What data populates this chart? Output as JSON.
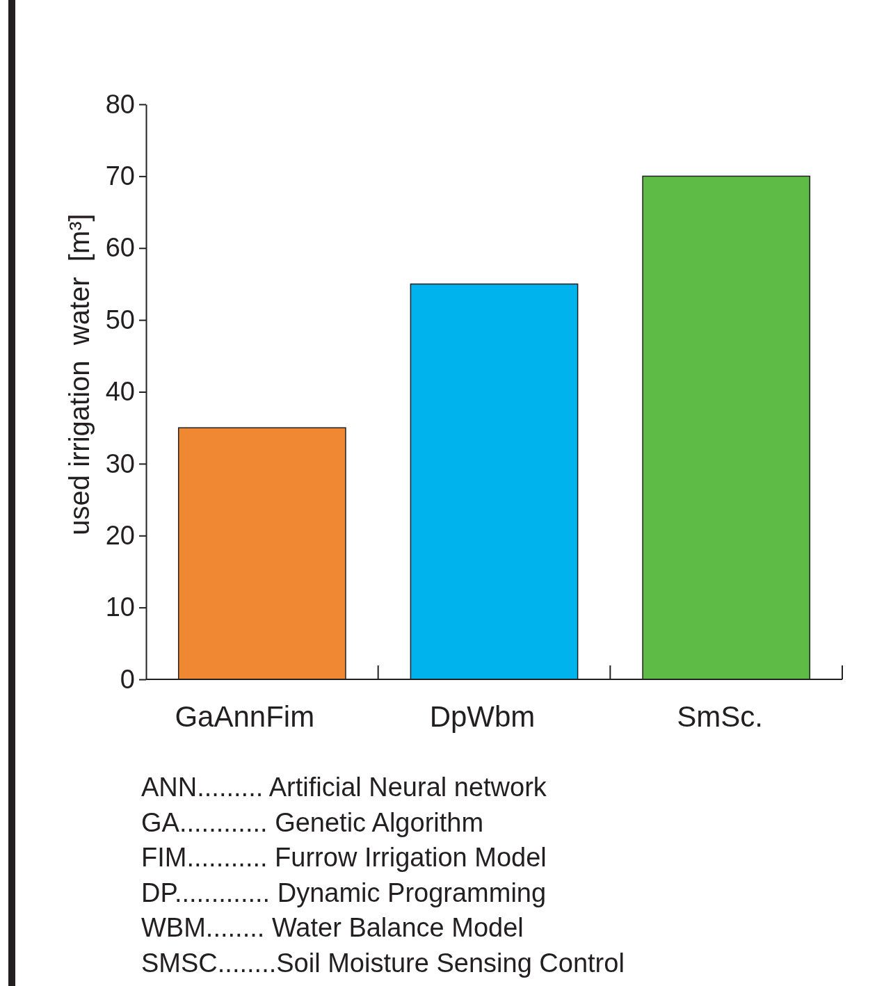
{
  "chart_data": {
    "type": "bar",
    "ylabel": "used irrigation  water  [m³]",
    "categories": [
      "GaAnnFim",
      "DpWbm",
      "SmSc."
    ],
    "values": [
      35,
      55,
      70
    ],
    "colors": [
      "#f08833",
      "#00b3ec",
      "#5dbb46"
    ],
    "ylim": [
      0,
      80
    ],
    "yticks": [
      0,
      10,
      20,
      30,
      40,
      50,
      60,
      70,
      80
    ],
    "grid": false,
    "annotations": [
      "ANN......... Artificial Neural network",
      "GA............ Genetic Algorithm",
      "FIM........... Furrow Irrigation Model",
      "DP............. Dynamic Programming",
      "WBM........ Water Balance Model",
      "SMSC........Soil Moisture Sensing Control"
    ]
  }
}
